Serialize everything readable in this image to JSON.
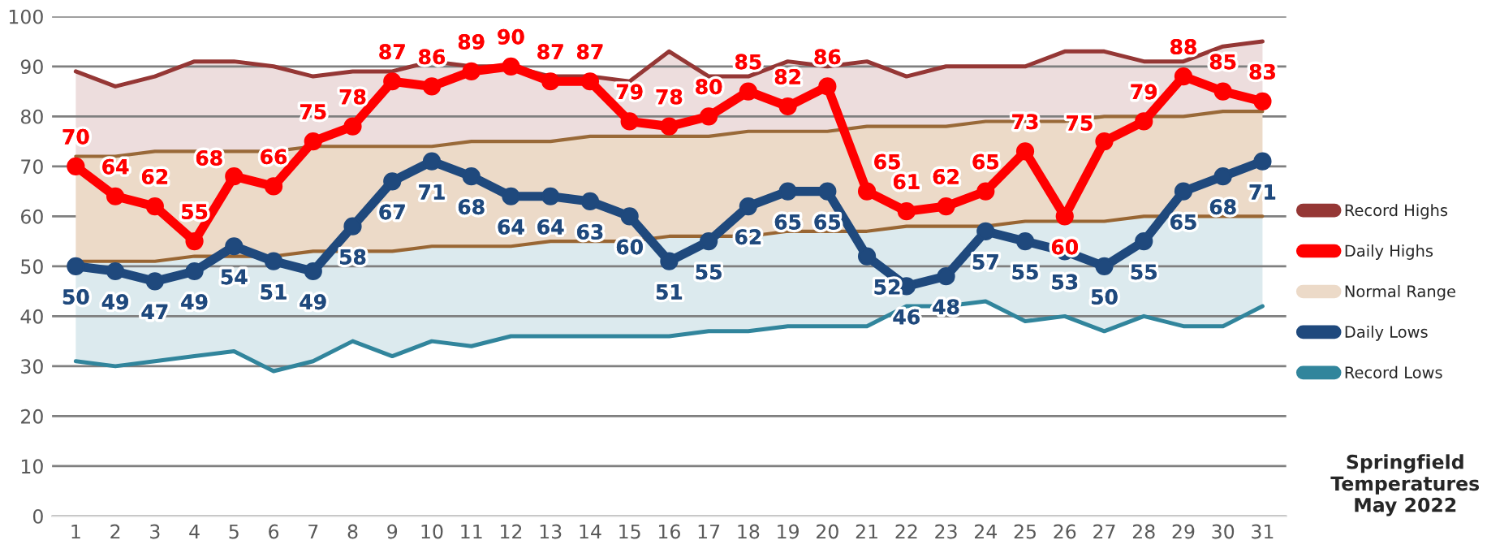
{
  "chart_data": {
    "type": "line",
    "title": "Springfield Temperatures May 2022",
    "categories": [
      "1",
      "2",
      "3",
      "4",
      "5",
      "6",
      "7",
      "8",
      "9",
      "10",
      "11",
      "12",
      "13",
      "14",
      "15",
      "16",
      "17",
      "18",
      "19",
      "20",
      "21",
      "22",
      "23",
      "24",
      "25",
      "26",
      "27",
      "28",
      "29",
      "30",
      "31"
    ],
    "series": [
      {
        "name": "Record Highs",
        "color": "#953735",
        "marker": "none",
        "values": [
          89,
          86,
          88,
          91,
          91,
          90,
          88,
          89,
          89,
          91,
          90,
          90,
          88,
          88,
          87,
          93,
          88,
          88,
          91,
          90,
          91,
          88,
          90,
          90,
          90,
          93,
          93,
          91,
          91,
          94,
          95
        ]
      },
      {
        "name": "Daily Highs",
        "color": "#ff0000",
        "marker": "circle",
        "values": [
          70,
          64,
          62,
          55,
          68,
          66,
          75,
          78,
          87,
          86,
          89,
          90,
          87,
          87,
          79,
          78,
          80,
          85,
          82,
          86,
          65,
          61,
          62,
          65,
          73,
          60,
          75,
          79,
          88,
          85,
          83
        ],
        "value_labels": [
          "70",
          "64",
          "62",
          "55",
          "68",
          "66",
          "75",
          "78",
          "87",
          "86",
          "89",
          "90",
          "87",
          "87",
          "79",
          "78",
          "80",
          "85",
          "82",
          "86",
          "65",
          "61",
          "62",
          "65",
          "73",
          "60",
          "75",
          "79",
          "88",
          "85",
          "83"
        ]
      },
      {
        "name": "Normal Range",
        "type": "area",
        "color": "#ecdac8",
        "values": [
          72,
          72,
          73,
          73,
          73,
          73,
          74,
          74,
          74,
          74,
          75,
          75,
          75,
          76,
          76,
          76,
          76,
          77,
          77,
          77,
          78,
          78,
          78,
          79,
          79,
          79,
          80,
          80,
          80,
          81,
          81
        ]
      },
      {
        "color": "#996633",
        "marker": "none",
        "values": [
          51,
          51,
          51,
          52,
          52,
          52,
          53,
          53,
          53,
          54,
          54,
          54,
          55,
          55,
          55,
          56,
          56,
          56,
          57,
          57,
          57,
          58,
          58,
          58,
          59,
          59,
          59,
          60,
          60,
          60,
          60
        ]
      },
      {
        "name": "Daily Lows",
        "color": "#1f497d",
        "marker": "circle",
        "values": [
          50,
          49,
          47,
          49,
          54,
          51,
          49,
          58,
          67,
          71,
          68,
          64,
          64,
          63,
          60,
          51,
          55,
          62,
          65,
          65,
          52,
          46,
          48,
          57,
          55,
          53,
          50,
          55,
          65,
          68,
          71
        ],
        "value_labels": [
          "50",
          "49",
          "47",
          "49",
          "54",
          "51",
          "49",
          "58",
          "67",
          "71",
          "68",
          "64",
          "64",
          "63",
          "60",
          "51",
          "55",
          "62",
          "65",
          "65",
          "52",
          "46",
          "48",
          "57",
          "55",
          "53",
          "50",
          "55",
          "65",
          "68",
          "71"
        ]
      },
      {
        "name": "Record Lows",
        "color": "#31859c",
        "marker": "none",
        "values": [
          31,
          30,
          31,
          32,
          33,
          29,
          31,
          35,
          32,
          35,
          34,
          36,
          36,
          36,
          36,
          36,
          37,
          37,
          38,
          38,
          38,
          42,
          42,
          43,
          39,
          40,
          37,
          40,
          38,
          38,
          42
        ]
      }
    ],
    "ylim": [
      0,
      100
    ],
    "yticks": [
      0,
      10,
      20,
      30,
      40,
      50,
      60,
      70,
      80,
      90,
      100
    ],
    "grid": "y",
    "legend": "right"
  }
}
